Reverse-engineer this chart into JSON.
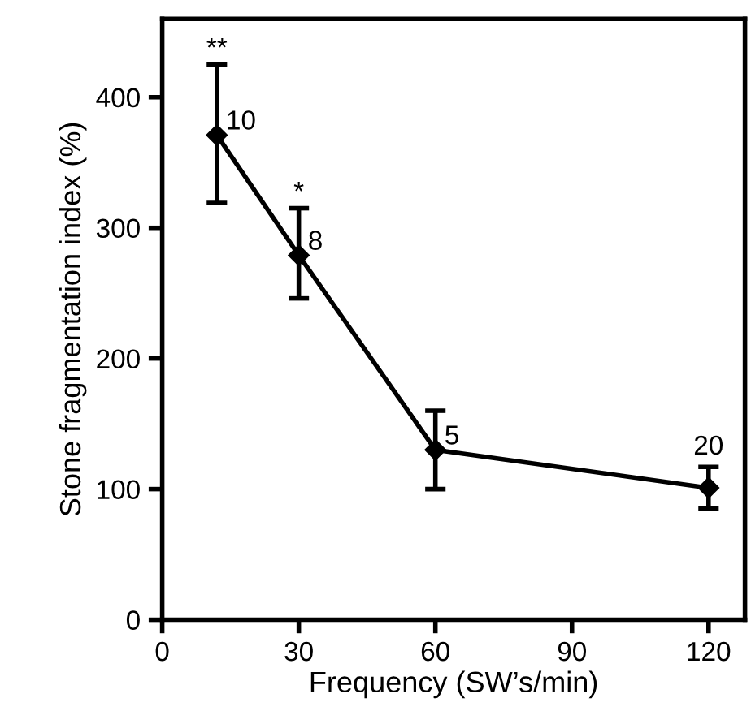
{
  "chart_data": {
    "type": "line",
    "xlabel": "Frequency (SW’s/min)",
    "ylabel": "Stone fragmentation index (%)",
    "x": [
      12,
      30,
      60,
      120
    ],
    "series": [
      {
        "color": "#000000",
        "values": [
          371,
          279,
          130,
          101
        ],
        "errors": [
          [
            319,
            425
          ],
          [
            246,
            315
          ],
          [
            100,
            160
          ],
          [
            85,
            117
          ]
        ]
      }
    ],
    "xlim": [
      0,
      128
    ],
    "xticks": [
      0,
      30,
      60,
      90,
      120
    ],
    "ylim": [
      0,
      460
    ],
    "yticks": [
      0,
      100,
      200,
      300,
      400
    ],
    "marker": "diamond",
    "line_style": "solid",
    "grid": false,
    "legend": false,
    "annotations": [
      {
        "text": "10",
        "x": 12,
        "y": 371
      },
      {
        "text": "8",
        "x": 30,
        "y": 279
      },
      {
        "text": "5",
        "x": 60,
        "y": 130
      },
      {
        "text": "20",
        "x": 120,
        "y": 101
      },
      {
        "text": "**",
        "x": 12,
        "y": 425
      },
      {
        "text": "*",
        "x": 30,
        "y": 315
      }
    ]
  }
}
